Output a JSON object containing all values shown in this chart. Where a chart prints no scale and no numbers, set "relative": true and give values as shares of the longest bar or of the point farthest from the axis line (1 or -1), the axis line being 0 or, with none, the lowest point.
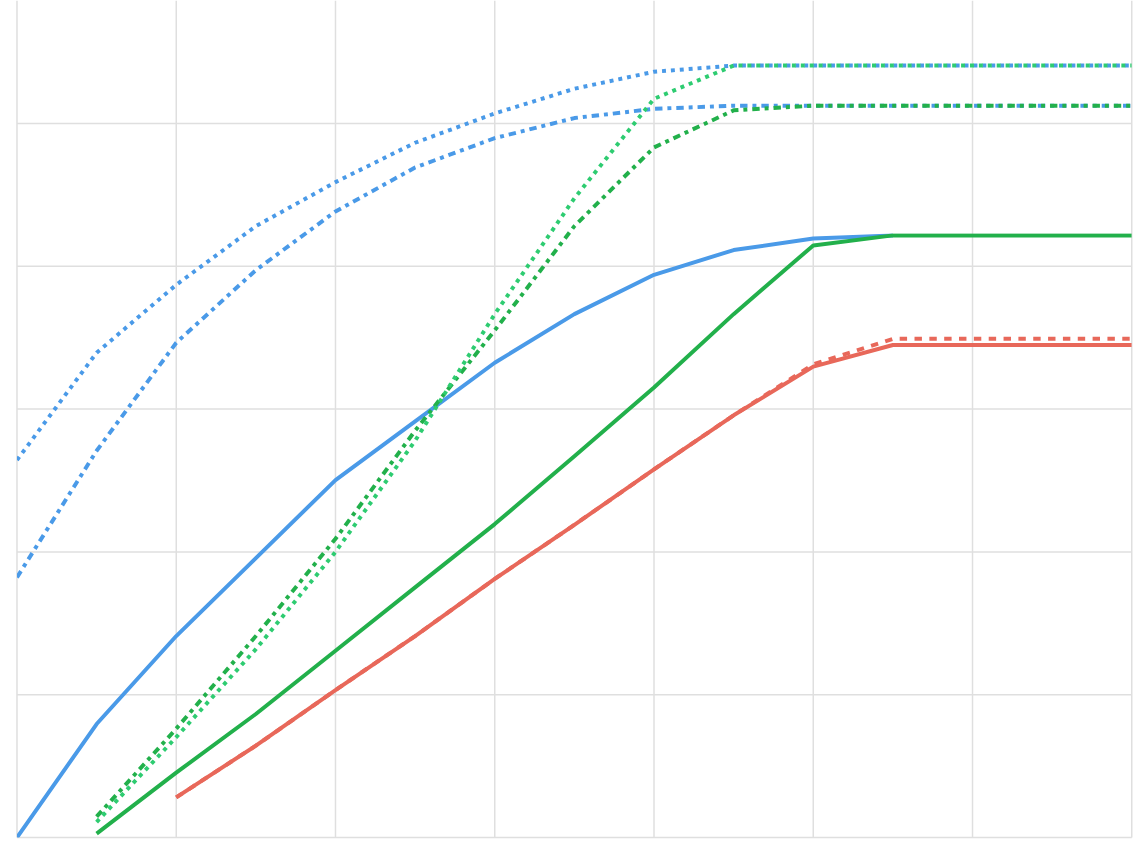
{
  "chart_data": {
    "type": "line",
    "relative": true,
    "grid": true,
    "marker": "none",
    "categories": [
      null,
      null,
      null,
      null,
      null,
      null,
      null,
      null,
      null,
      null,
      null,
      null,
      null,
      null,
      null
    ],
    "series": [
      {
        "color": "#4a9ae8",
        "line_style": "dotted",
        "values": [
          0.489,
          0.628,
          0.716,
          0.792,
          0.849,
          0.9,
          0.938,
          0.97,
          0.992,
          1,
          1,
          1,
          1,
          1,
          1
        ]
      },
      {
        "color": "#4a9ae8",
        "line_style": "dashdot",
        "values": [
          0.337,
          0.501,
          0.641,
          0.735,
          0.811,
          0.868,
          0.906,
          0.932,
          0.944,
          0.948,
          0.948,
          0.948,
          0.948,
          0.948,
          0.948
        ]
      },
      {
        "color": "#4a9ae8",
        "line_style": "solid",
        "values": [
          0,
          0.147,
          0.261,
          0.362,
          0.463,
          0.539,
          0.615,
          0.678,
          0.729,
          0.761,
          0.776,
          0.78,
          null,
          null,
          null
        ]
      },
      {
        "color": "#22b04b",
        "line_style": "solid",
        "values": [
          null,
          0.005,
          0.084,
          0.16,
          0.242,
          0.324,
          0.406,
          0.494,
          0.583,
          0.678,
          0.767,
          0.78,
          0.78,
          0.78,
          0.78
        ]
      },
      {
        "color": "#22b04b",
        "line_style": "dashdot",
        "values": [
          null,
          0.027,
          0.141,
          0.261,
          0.387,
          0.527,
          0.657,
          0.792,
          0.894,
          0.942,
          0.948,
          0.948,
          0.948,
          0.948,
          0.948
        ]
      },
      {
        "color": "#2ecc71",
        "line_style": "dotted",
        "values": [
          null,
          0.02,
          0.13,
          0.244,
          0.37,
          0.514,
          0.678,
          0.828,
          0.957,
          1,
          1,
          1,
          1,
          1,
          1
        ]
      },
      {
        "color": "#e8685a",
        "line_style": "solid",
        "values": [
          null,
          null,
          0.052,
          0.119,
          0.191,
          0.261,
          0.335,
          0.405,
          0.477,
          0.547,
          0.61,
          0.638,
          0.638,
          0.638,
          0.638
        ]
      },
      {
        "color": "#e8685a",
        "line_style": "dashed",
        "values": [
          null,
          null,
          0.052,
          0.119,
          0.191,
          0.261,
          0.335,
          0.405,
          0.477,
          0.547,
          0.613,
          0.646,
          0.646,
          0.646,
          0.646
        ]
      }
    ]
  }
}
